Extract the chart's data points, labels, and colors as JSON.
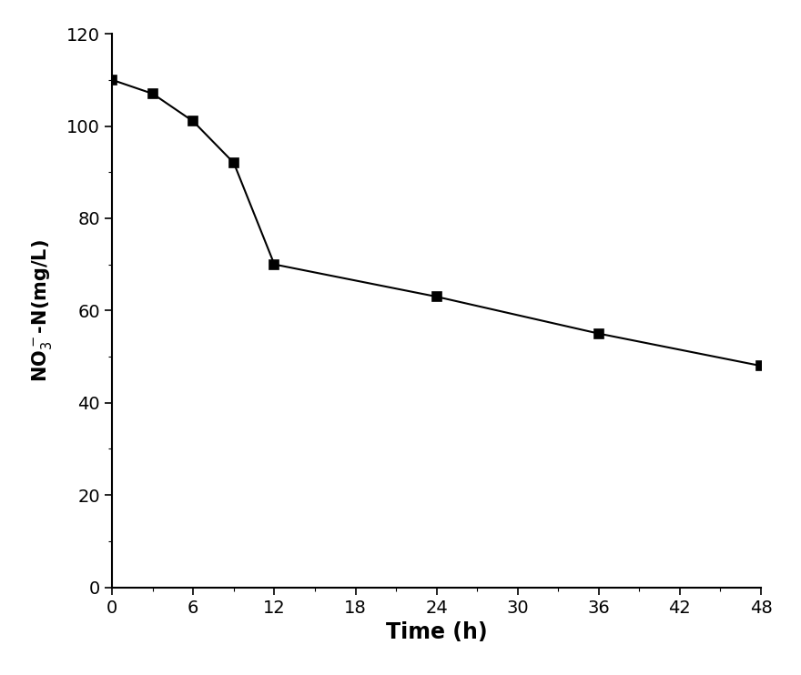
{
  "x": [
    0,
    3,
    6,
    9,
    12,
    24,
    36,
    48
  ],
  "y": [
    110,
    107,
    101,
    92,
    70,
    63,
    55,
    48
  ],
  "xlabel": "Time (h)",
  "xlim": [
    0,
    48
  ],
  "ylim": [
    0,
    120
  ],
  "xticks": [
    0,
    6,
    12,
    18,
    24,
    30,
    36,
    42,
    48
  ],
  "yticks": [
    0,
    20,
    40,
    60,
    80,
    100,
    120
  ],
  "line_color": "#000000",
  "marker": "s",
  "marker_size": 7,
  "line_width": 1.5,
  "marker_face_color": "#000000",
  "marker_edge_color": "#000000",
  "background_color": "#ffffff",
  "xlabel_fontsize": 17,
  "ylabel_fontsize": 15,
  "tick_fontsize": 14,
  "spine_linewidth": 1.5
}
